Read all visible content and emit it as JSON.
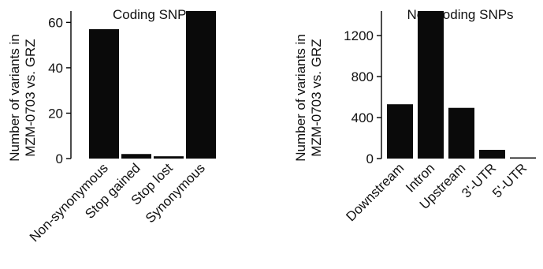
{
  "chart_data": [
    {
      "type": "bar",
      "title": "Coding SNPs",
      "ylabel_lines": [
        "Number of variants in",
        "MZM-0703 vs. GRZ"
      ],
      "categories": [
        "Non-synonymous",
        "Stop gained",
        "Stop lost",
        "Synonymous"
      ],
      "values": [
        57,
        2,
        1,
        65
      ],
      "ylim": [
        0,
        65
      ],
      "yticks": [
        "0",
        "20",
        "40",
        "60"
      ],
      "bar_color": "#0a0a0a",
      "grid": false,
      "legend": "none"
    },
    {
      "type": "bar",
      "title": "Non-coding SNPs",
      "ylabel_lines": [
        "Number of variants in",
        "MZM-0703 vs. GRZ"
      ],
      "categories": [
        "Downstream",
        "Intron",
        "Upstream",
        "3'-UTR",
        "5'-UTR"
      ],
      "values": [
        530,
        1440,
        495,
        85,
        8
      ],
      "ylim": [
        0,
        1440
      ],
      "yticks": [
        "0",
        "400",
        "800",
        "1200"
      ],
      "bar_color": "#0a0a0a",
      "grid": false,
      "legend": "none"
    }
  ]
}
